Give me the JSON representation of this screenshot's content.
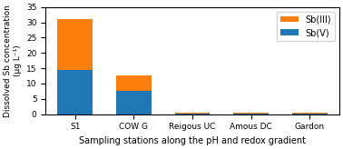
{
  "chart_data": {
    "type": "bar",
    "stacked": true,
    "categories": [
      "S1",
      "COW G",
      "Reigous UC",
      "Amous DC",
      "Gardon"
    ],
    "series": [
      {
        "name": "Sb(V)",
        "values": [
          14.5,
          7.5,
          0.3,
          0.3,
          0.3
        ]
      },
      {
        "name": "Sb(III)",
        "values": [
          16.5,
          5.0,
          0.2,
          0.2,
          0.2
        ]
      }
    ],
    "xlabel": "Sampling stations along the pH and redox gradient",
    "ylabel": "Dissolved Sb concentration\n(μg L⁻¹)",
    "ylim": [
      0,
      35
    ],
    "yticks": [
      0,
      5,
      10,
      15,
      20,
      25,
      30,
      35
    ],
    "legend": "upper right"
  }
}
